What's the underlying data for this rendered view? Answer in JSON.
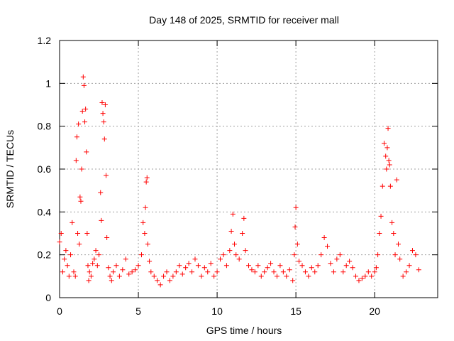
{
  "chart_data": {
    "type": "scatter",
    "title": "Day 148 of 2025, SRMTID for receiver mall",
    "xlabel": "GPS time / hours",
    "ylabel": "SRMTID / TECUs",
    "xlim": [
      0,
      24
    ],
    "ylim": [
      0,
      1.2
    ],
    "x_ticks": [
      0,
      5,
      10,
      15,
      20
    ],
    "x_tick_labels": [
      "0",
      "5",
      "10",
      "15",
      "20"
    ],
    "y_ticks": [
      0,
      0.2,
      0.4,
      0.6,
      0.8,
      1.0,
      1.2
    ],
    "y_tick_labels": [
      "0",
      "0.2",
      "0.4",
      "0.6",
      "0.8",
      "1",
      "1.2"
    ],
    "grid": true,
    "marker": "+",
    "series": [
      {
        "name": "SRMTID",
        "color": "#ff0000",
        "x": [
          0.0,
          0.1,
          0.2,
          0.3,
          0.4,
          0.5,
          0.6,
          0.7,
          0.8,
          0.9,
          1.0,
          1.05,
          1.1,
          1.15,
          1.2,
          1.25,
          1.3,
          1.35,
          1.4,
          1.45,
          1.5,
          1.55,
          1.6,
          1.65,
          1.7,
          1.75,
          1.8,
          1.85,
          1.9,
          2.0,
          2.1,
          2.2,
          2.3,
          2.4,
          2.5,
          2.6,
          2.65,
          2.7,
          2.75,
          2.8,
          2.85,
          2.9,
          2.95,
          3.0,
          3.1,
          3.2,
          3.3,
          3.4,
          3.6,
          3.8,
          4.0,
          4.2,
          4.4,
          4.6,
          4.8,
          5.0,
          5.2,
          5.3,
          5.4,
          5.45,
          5.5,
          5.55,
          5.6,
          5.7,
          5.8,
          6.0,
          6.2,
          6.4,
          6.6,
          6.8,
          7.0,
          7.2,
          7.4,
          7.6,
          7.8,
          8.0,
          8.2,
          8.4,
          8.6,
          8.8,
          9.0,
          9.2,
          9.4,
          9.6,
          9.8,
          10.0,
          10.2,
          10.4,
          10.6,
          10.8,
          10.9,
          11.0,
          11.1,
          11.2,
          11.4,
          11.6,
          11.7,
          11.8,
          12.0,
          12.2,
          12.4,
          12.6,
          12.8,
          13.0,
          13.2,
          13.4,
          13.6,
          13.8,
          14.0,
          14.2,
          14.4,
          14.6,
          14.8,
          14.9,
          14.95,
          15.0,
          15.1,
          15.2,
          15.4,
          15.6,
          15.8,
          16.0,
          16.2,
          16.4,
          16.6,
          16.8,
          17.0,
          17.2,
          17.4,
          17.6,
          17.8,
          18.0,
          18.2,
          18.4,
          18.6,
          18.8,
          19.0,
          19.2,
          19.4,
          19.6,
          19.8,
          20.0,
          20.1,
          20.2,
          20.3,
          20.4,
          20.5,
          20.6,
          20.7,
          20.75,
          20.8,
          20.85,
          20.9,
          20.95,
          21.0,
          21.1,
          21.2,
          21.3,
          21.4,
          21.5,
          21.6,
          21.8,
          22.0,
          22.2,
          22.4,
          22.6,
          22.8
        ],
        "y": [
          0.26,
          0.3,
          0.12,
          0.18,
          0.22,
          0.15,
          0.1,
          0.2,
          0.35,
          0.12,
          0.1,
          0.64,
          0.75,
          0.3,
          0.81,
          0.25,
          0.47,
          0.45,
          0.6,
          0.87,
          1.03,
          0.99,
          0.82,
          0.88,
          0.68,
          0.3,
          0.15,
          0.08,
          0.12,
          0.1,
          0.16,
          0.18,
          0.22,
          0.15,
          0.2,
          0.49,
          0.36,
          0.91,
          0.86,
          0.82,
          0.74,
          0.9,
          0.57,
          0.28,
          0.14,
          0.1,
          0.08,
          0.12,
          0.15,
          0.1,
          0.13,
          0.18,
          0.11,
          0.12,
          0.13,
          0.15,
          0.2,
          0.35,
          0.3,
          0.42,
          0.54,
          0.56,
          0.25,
          0.17,
          0.12,
          0.1,
          0.08,
          0.06,
          0.1,
          0.12,
          0.08,
          0.1,
          0.12,
          0.15,
          0.11,
          0.14,
          0.16,
          0.12,
          0.18,
          0.15,
          0.1,
          0.14,
          0.12,
          0.16,
          0.1,
          0.12,
          0.18,
          0.2,
          0.15,
          0.22,
          0.31,
          0.39,
          0.25,
          0.2,
          0.18,
          0.3,
          0.37,
          0.22,
          0.15,
          0.13,
          0.12,
          0.15,
          0.1,
          0.12,
          0.14,
          0.16,
          0.12,
          0.1,
          0.15,
          0.12,
          0.1,
          0.13,
          0.08,
          0.2,
          0.33,
          0.42,
          0.25,
          0.17,
          0.15,
          0.12,
          0.1,
          0.14,
          0.12,
          0.15,
          0.2,
          0.28,
          0.24,
          0.16,
          0.12,
          0.18,
          0.2,
          0.12,
          0.15,
          0.17,
          0.14,
          0.1,
          0.08,
          0.09,
          0.1,
          0.12,
          0.1,
          0.12,
          0.14,
          0.2,
          0.3,
          0.38,
          0.52,
          0.72,
          0.66,
          0.6,
          0.7,
          0.79,
          0.64,
          0.62,
          0.52,
          0.35,
          0.3,
          0.2,
          0.55,
          0.25,
          0.18,
          0.1,
          0.12,
          0.15,
          0.22,
          0.2,
          0.13
        ]
      }
    ]
  }
}
